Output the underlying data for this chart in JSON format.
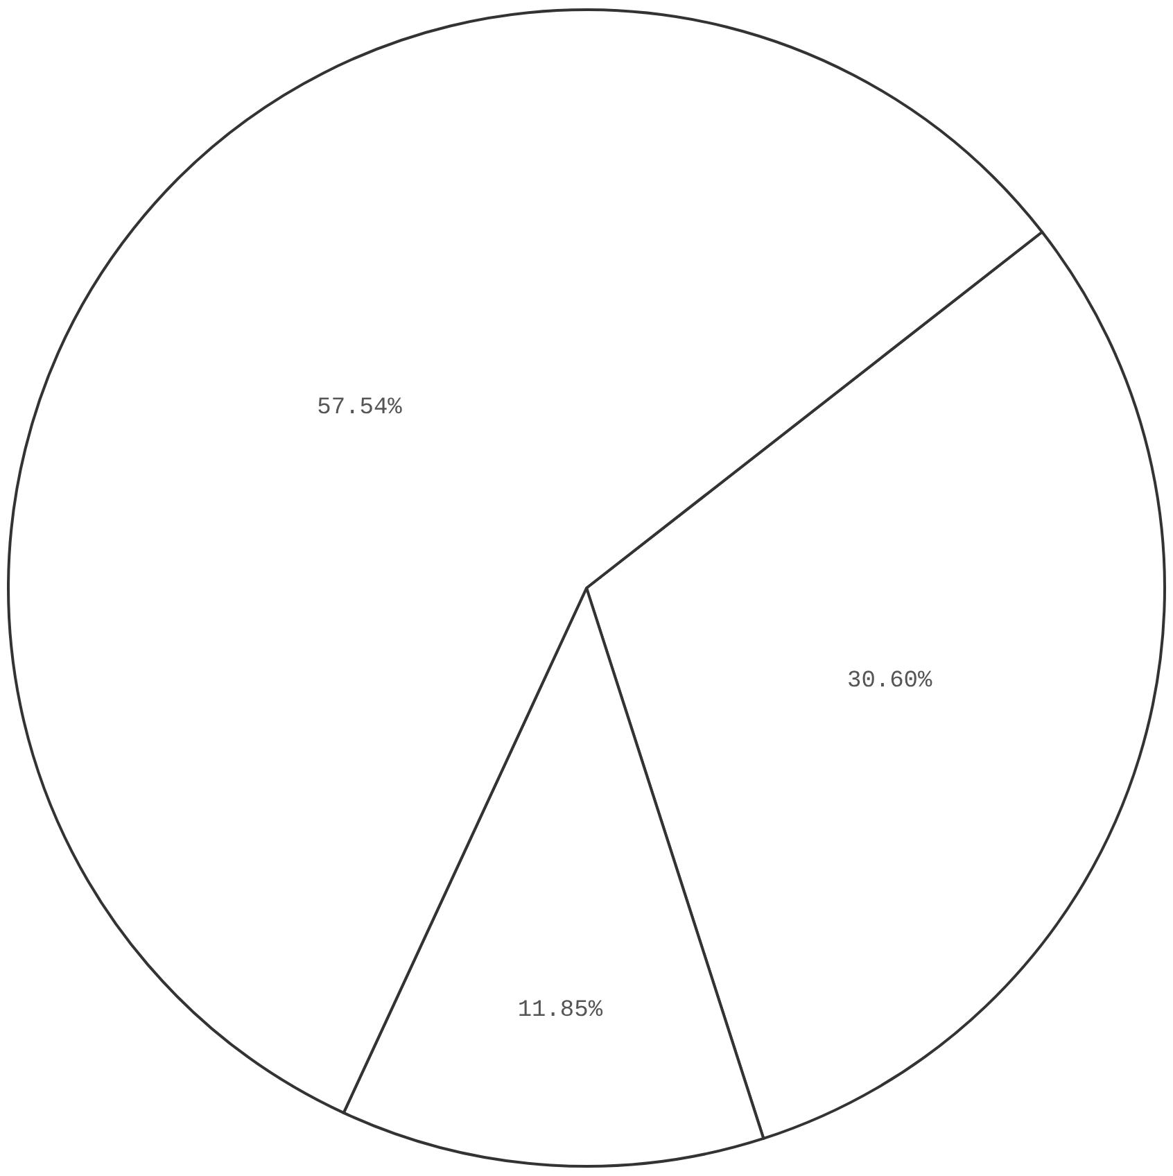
{
  "chart_data": {
    "type": "pie",
    "categories": [
      null,
      null,
      null
    ],
    "values": [
      30.6,
      11.85,
      57.54
    ],
    "value_labels": [
      "30.60%",
      "11.85%",
      "57.54%"
    ],
    "colors": [
      "#ffffff",
      "#ffffff",
      "#ffffff"
    ]
  }
}
